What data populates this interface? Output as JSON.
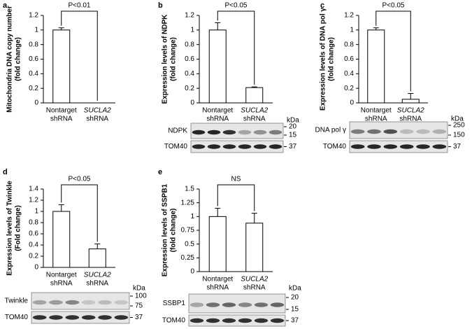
{
  "chart_data": [
    {
      "type": "bar",
      "panel": "a",
      "ylabel": [
        "Mitochondria DNA copy number",
        "(fold change)"
      ],
      "categories": [
        [
          "Nontarget",
          "shRNA"
        ],
        [
          "SUCLA2",
          "shRNA"
        ]
      ],
      "values": [
        1,
        0
      ],
      "errors": [
        0.03,
        0
      ],
      "color": "#ffffff",
      "ylim": [
        0,
        1.2
      ],
      "yticks": [
        0,
        0.2,
        0.4,
        0.6,
        0.8,
        1,
        1.2
      ],
      "annotation": "P<0.01"
    },
    {
      "type": "bar",
      "panel": "b",
      "ylabel": [
        "Expression levels of NDPK",
        "(fold change)"
      ],
      "categories": [
        [
          "Nontarget",
          "shRNA"
        ],
        [
          "SUCLA2",
          "shRNA"
        ]
      ],
      "values": [
        1,
        0.21
      ],
      "errors": [
        0.1,
        0.01
      ],
      "color": "#ffffff",
      "ylim": [
        0,
        1.2
      ],
      "yticks": [
        0,
        0.2,
        0.4,
        0.6,
        0.8,
        1,
        1.2
      ],
      "annotation": "P<0.05",
      "blot": {
        "unit": "kDa",
        "rows": [
          {
            "label": "NDPK",
            "markers": [
              20,
              15
            ]
          },
          {
            "label": "TOM40",
            "markers": [
              37
            ]
          }
        ]
      }
    },
    {
      "type": "bar",
      "panel": "c",
      "ylabel": [
        "Expression levels of DNA pol γ",
        "(fold change)"
      ],
      "categories": [
        [
          "Nontarget",
          "shRNA"
        ],
        [
          "SUCLA2",
          "shRNA"
        ]
      ],
      "values": [
        1,
        0.05
      ],
      "errors": [
        0.03,
        0.08
      ],
      "color": "#ffffff",
      "ylim": [
        0,
        1.2
      ],
      "yticks": [
        0,
        0.2,
        0.4,
        0.6,
        0.8,
        1,
        1.2
      ],
      "annotation": "P<0.05",
      "blot": {
        "unit": "kDa",
        "rows": [
          {
            "label": "DNA pol γ",
            "markers": [
              250,
              150
            ]
          },
          {
            "label": "TOM40",
            "markers": [
              37
            ]
          }
        ]
      }
    },
    {
      "type": "bar",
      "panel": "d",
      "ylabel": [
        "Expression levels of Twinkle",
        "(Fold change)"
      ],
      "categories": [
        [
          "Nontarget",
          "shRNA"
        ],
        [
          "SUCLA2",
          "shRNA"
        ]
      ],
      "values": [
        1,
        0.33
      ],
      "errors": [
        0.12,
        0.09
      ],
      "color": "#ffffff",
      "ylim": [
        0,
        1.4
      ],
      "yticks": [
        0,
        0.2,
        0.4,
        0.6,
        0.8,
        1,
        1.2,
        1.4
      ],
      "annotation": "P<0.05",
      "blot": {
        "unit": "kDa",
        "rows": [
          {
            "label": "Twinkle",
            "markers": [
              100,
              75
            ]
          },
          {
            "label": "TOM40",
            "markers": [
              37
            ]
          }
        ]
      }
    },
    {
      "type": "bar",
      "panel": "e",
      "ylabel": [
        "Expression levels of  SSPB1",
        "(fold change)"
      ],
      "categories": [
        [
          "Nontarget",
          "shRNA"
        ],
        [
          "SUCLA2",
          "shRNA"
        ]
      ],
      "values": [
        1,
        0.88
      ],
      "errors": [
        0.15,
        0.18
      ],
      "color": "#ffffff",
      "ylim": [
        0,
        1.5
      ],
      "yticks": [
        0,
        0.25,
        0.5,
        0.75,
        1,
        1.25,
        1.5
      ],
      "annotation": "NS",
      "blot": {
        "unit": "kDa",
        "rows": [
          {
            "label": "SSBP1",
            "markers": [
              20,
              15
            ]
          },
          {
            "label": "TOM40",
            "markers": [
              37
            ]
          }
        ]
      }
    }
  ]
}
